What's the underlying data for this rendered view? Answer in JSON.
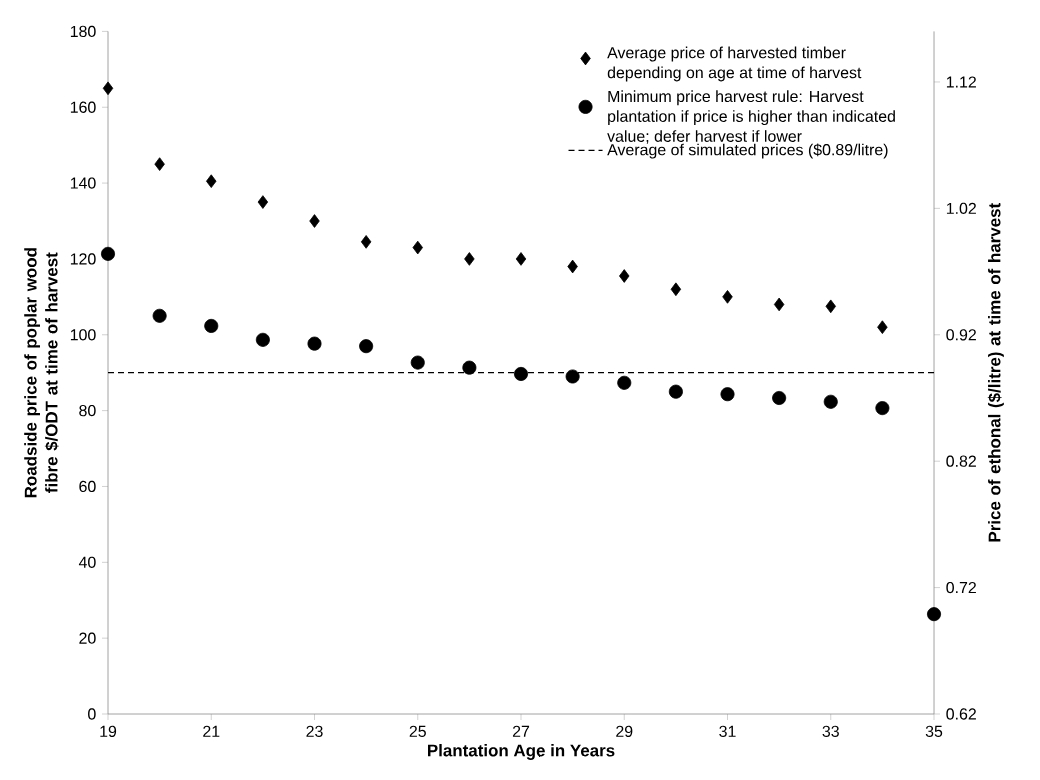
{
  "chart_data": {
    "type": "scatter",
    "xlabel": "Plantation Age in Years",
    "ylabel": "Roadside price of poplar wood fibre $/ODT at time of harvest",
    "y2label": "Price of ethonal  ($/litre) at time of harvest",
    "x": [
      19,
      20,
      21,
      22,
      23,
      24,
      25,
      26,
      27,
      28,
      29,
      30,
      31,
      32,
      33,
      34,
      35
    ],
    "series": [
      {
        "name": "Average price of harvested timber depending on age at time of harvest",
        "color": "#000000",
        "marker": "diamond",
        "values": [
          165,
          145,
          140.5,
          135,
          130,
          124.5,
          123,
          120,
          120,
          118,
          115.5,
          112,
          110,
          108,
          107.5,
          102,
          null
        ]
      },
      {
        "name": "Minimum price harvest rule: Harvest plantation if price is higher than indicated value; defer harvest if lower",
        "color": "#000000",
        "marker": "circle",
        "axis": "y2",
        "values": [
          0.984,
          0.935,
          0.927,
          0.916,
          0.913,
          0.911,
          0.898,
          0.894,
          0.889,
          0.887,
          0.882,
          0.875,
          0.873,
          0.87,
          0.867,
          0.862,
          0.699
        ]
      }
    ],
    "ref_lines": [
      {
        "axis": "y2",
        "value": 0.89,
        "label": "Average of simulated prices ($0.89/litre)",
        "color": "#000000",
        "line_style": "dashed"
      }
    ],
    "xlim": [
      19,
      35
    ],
    "xticks": [
      19,
      21,
      23,
      25,
      27,
      29,
      31,
      33,
      35
    ],
    "ylim": [
      0,
      180
    ],
    "yticks": [
      0,
      20,
      40,
      60,
      80,
      100,
      120,
      140,
      160,
      180
    ],
    "y2lim": [
      0.62,
      1.16
    ],
    "y2ticks": [
      0.62,
      0.72,
      0.82,
      0.92,
      1.02,
      1.12
    ],
    "legend": "top right",
    "grid": false
  }
}
